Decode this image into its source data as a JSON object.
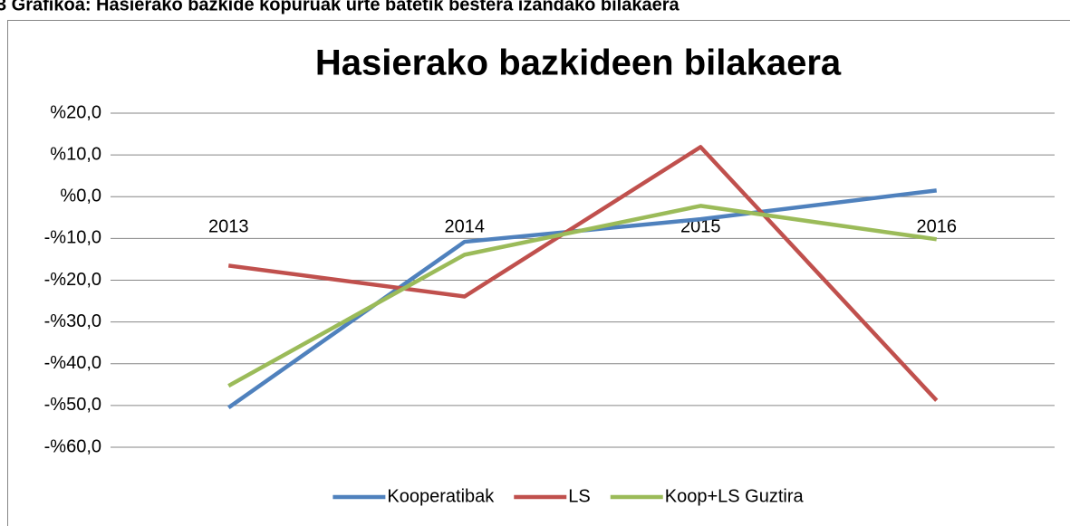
{
  "caption": "3 Grafikoa: Hasierako bazkide kopuruak urte batetik bestera izandako bilakaera",
  "chart_data": {
    "type": "line",
    "title": "Hasierako bazkideen bilakaera",
    "categories": [
      "2013",
      "2014",
      "2015",
      "2016"
    ],
    "series": [
      {
        "name": "Kooperatibak",
        "color": "#4f81bd",
        "values": [
          -50.5,
          -10.8,
          -5.4,
          1.5
        ]
      },
      {
        "name": "LS",
        "color": "#c0504d",
        "values": [
          -16.5,
          -23.9,
          11.9,
          -48.8
        ]
      },
      {
        "name": "Koop+LS Guztira",
        "color": "#9bbb59",
        "values": [
          -45.3,
          -13.9,
          -2.2,
          -10.2
        ]
      }
    ],
    "ylim": [
      -60,
      20
    ],
    "yticks": [
      {
        "value": -60,
        "label": "-%60,0"
      },
      {
        "value": -50,
        "label": "-%50,0"
      },
      {
        "value": -40,
        "label": "-%40,0"
      },
      {
        "value": -30,
        "label": "-%30,0"
      },
      {
        "value": -20,
        "label": "-%20,0"
      },
      {
        "value": -10,
        "label": "-%10,0"
      },
      {
        "value": 0,
        "label": "%0,0"
      },
      {
        "value": 10,
        "label": "%10,0"
      },
      {
        "value": 20,
        "label": "%20,0"
      }
    ],
    "grid": true,
    "legend": "bottom"
  }
}
